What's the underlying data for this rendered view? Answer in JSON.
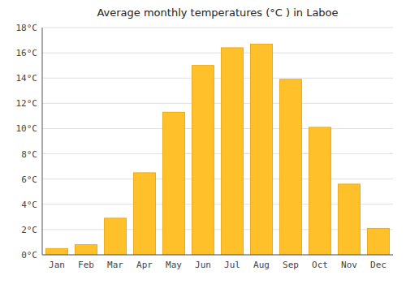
{
  "chart_data": {
    "type": "bar",
    "title": "Average monthly temperatures (°C ) in Laboe",
    "categories": [
      "Jan",
      "Feb",
      "Mar",
      "Apr",
      "May",
      "Jun",
      "Jul",
      "Aug",
      "Sep",
      "Oct",
      "Nov",
      "Dec"
    ],
    "values": [
      0.5,
      0.8,
      2.9,
      6.5,
      11.3,
      15.0,
      16.4,
      16.7,
      13.9,
      10.1,
      5.6,
      2.1
    ],
    "color": "#FFC02A",
    "ylim": [
      0,
      18
    ],
    "yticks": [
      {
        "value": 0,
        "label": "0°C"
      },
      {
        "value": 2,
        "label": "2°C"
      },
      {
        "value": 4,
        "label": "4°C"
      },
      {
        "value": 6,
        "label": "6°C"
      },
      {
        "value": 8,
        "label": "8°C"
      },
      {
        "value": 10,
        "label": "10°C"
      },
      {
        "value": 12,
        "label": "12°C"
      },
      {
        "value": 14,
        "label": "14°C"
      },
      {
        "value": 16,
        "label": "16°C"
      },
      {
        "value": 18,
        "label": "18°C"
      }
    ],
    "grid": true
  }
}
